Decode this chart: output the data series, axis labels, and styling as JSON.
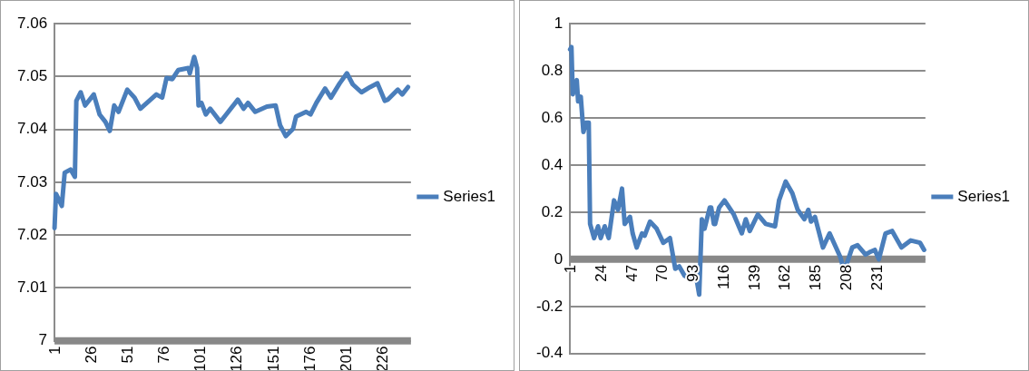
{
  "chart_data": [
    {
      "type": "line",
      "xlim": [
        1,
        246
      ],
      "xticks": [
        1,
        26,
        51,
        76,
        101,
        126,
        151,
        176,
        201,
        226
      ],
      "ylim": [
        7,
        7.06
      ],
      "yticks": [
        7,
        7.01,
        7.02,
        7.03,
        7.04,
        7.05,
        7.06
      ],
      "grid": "y",
      "legend": "right",
      "marker": "none",
      "line_style": "solid",
      "series": [
        {
          "name": "Series1",
          "color": "#4a7ebb",
          "x": [
            1,
            2,
            6,
            8,
            12,
            15,
            16,
            19,
            22,
            28,
            32,
            36,
            39,
            42,
            45,
            51,
            56,
            60,
            71,
            75,
            78,
            82,
            86,
            93,
            94,
            97,
            99,
            100,
            102,
            105,
            108,
            115,
            119,
            127,
            131,
            134,
            139,
            147,
            153,
            156,
            160,
            165,
            167,
            174,
            177,
            181,
            187,
            191,
            197,
            202,
            206,
            212,
            218,
            223,
            228,
            230,
            237,
            240,
            244
          ],
          "values": [
            7.0213,
            7.0278,
            7.0255,
            7.0318,
            7.0324,
            7.031,
            7.0454,
            7.047,
            7.0445,
            7.0466,
            7.0428,
            7.0414,
            7.0397,
            7.0445,
            7.0433,
            7.0475,
            7.046,
            7.0439,
            7.0466,
            7.046,
            7.0497,
            7.0495,
            7.0512,
            7.0516,
            7.0506,
            7.0537,
            7.0516,
            7.0445,
            7.045,
            7.0428,
            7.0439,
            7.0414,
            7.0428,
            7.0456,
            7.0439,
            7.045,
            7.0433,
            7.0443,
            7.0445,
            7.0408,
            7.0387,
            7.0401,
            7.0424,
            7.0433,
            7.0428,
            7.045,
            7.0477,
            7.046,
            7.0487,
            7.0506,
            7.0485,
            7.047,
            7.048,
            7.0487,
            7.0454,
            7.0456,
            7.0475,
            7.0466,
            7.048
          ]
        }
      ]
    },
    {
      "type": "line",
      "xlim": [
        1,
        268
      ],
      "xticks": [
        1,
        24,
        47,
        70,
        93,
        116,
        139,
        162,
        185,
        208,
        231
      ],
      "ylim": [
        -0.4,
        1
      ],
      "yticks": [
        -0.4,
        -0.2,
        0,
        0.2,
        0.4,
        0.6,
        0.8,
        1
      ],
      "grid": "y",
      "legend": "right",
      "marker": "none",
      "line_style": "solid",
      "series": [
        {
          "name": "Series1",
          "color": "#4a7ebb",
          "x": [
            1,
            2,
            3,
            6,
            7,
            9,
            11,
            13,
            15,
            16,
            19,
            22,
            24,
            27,
            30,
            34,
            37,
            40,
            42,
            46,
            48,
            51,
            55,
            57,
            61,
            66,
            71,
            76,
            80,
            83,
            87,
            91,
            95,
            98,
            100,
            102,
            106,
            107,
            109,
            110,
            113,
            117,
            124,
            130,
            133,
            136,
            142,
            148,
            155,
            158,
            163,
            168,
            172,
            177,
            180,
            182,
            185,
            191,
            196,
            200,
            204,
            207,
            213,
            217,
            223,
            226,
            230,
            233,
            238,
            243,
            250,
            257,
            264,
            267
          ],
          "values": [
            0.89,
            0.9,
            0.7,
            0.76,
            0.67,
            0.69,
            0.54,
            0.58,
            0.58,
            0.15,
            0.09,
            0.14,
            0.09,
            0.14,
            0.09,
            0.25,
            0.21,
            0.3,
            0.15,
            0.18,
            0.11,
            0.05,
            0.11,
            0.1,
            0.16,
            0.13,
            0.07,
            0.09,
            -0.04,
            -0.03,
            -0.07,
            -0.08,
            -0.05,
            -0.15,
            0.17,
            0.13,
            0.22,
            0.22,
            0.15,
            0.15,
            0.22,
            0.25,
            0.19,
            0.11,
            0.17,
            0.12,
            0.19,
            0.15,
            0.14,
            0.25,
            0.33,
            0.28,
            0.21,
            0.17,
            0.21,
            0.16,
            0.18,
            0.05,
            0.11,
            0.06,
            0.01,
            -0.05,
            0.05,
            0.06,
            0.02,
            0.03,
            0.04,
            0,
            0.11,
            0.12,
            0.05,
            0.08,
            0.07,
            0.04
          ]
        }
      ]
    }
  ]
}
